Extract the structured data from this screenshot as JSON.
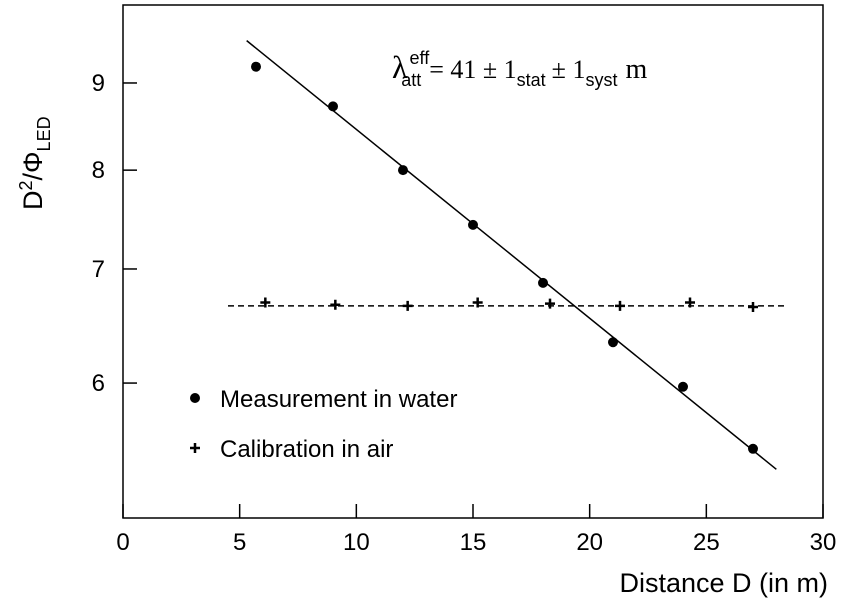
{
  "chart_data": {
    "type": "scatter",
    "y_label": {
      "main": "D",
      "sup": "2",
      "mid": "/Φ",
      "sub": "LED"
    },
    "x_label": "Distance D (in m)",
    "annotation": {
      "symbol": "λ",
      "sup": "eff",
      "sub": "att",
      "text1": "=  41  ±  1",
      "sub1": "stat",
      "text2": "±  1",
      "sub2": "syst",
      "unit": "m"
    },
    "xlim": [
      0,
      30
    ],
    "xticks": [
      0,
      5,
      10,
      15,
      20,
      25,
      30
    ],
    "ylim": [
      5,
      10
    ],
    "yticks": [
      6,
      7,
      8,
      9
    ],
    "log_y": true,
    "legend": "lower left",
    "series": [
      {
        "name": "Measurement in water",
        "marker": "circle",
        "color": "#000000",
        "x": [
          5.7,
          9,
          12,
          15,
          18,
          21,
          24,
          27
        ],
        "values": [
          9.2,
          8.72,
          8.0,
          7.43,
          6.87,
          6.34,
          5.97,
          5.49
        ]
      },
      {
        "name": "Calibration in air",
        "marker": "plus",
        "color": "#000000",
        "x": [
          6.1,
          9.1,
          12.2,
          15.2,
          18.3,
          21.3,
          24.3,
          27
        ],
        "values": [
          6.69,
          6.67,
          6.66,
          6.69,
          6.68,
          6.66,
          6.69,
          6.65
        ]
      }
    ],
    "lines": [
      {
        "style": "solid",
        "color": "#000000",
        "x": [
          5.3,
          28
        ],
        "values": [
          9.53,
          5.34
        ]
      },
      {
        "style": "dashed",
        "color": "#000000",
        "x": [
          4.5,
          28.5
        ],
        "values": [
          6.66,
          6.66
        ]
      }
    ]
  }
}
